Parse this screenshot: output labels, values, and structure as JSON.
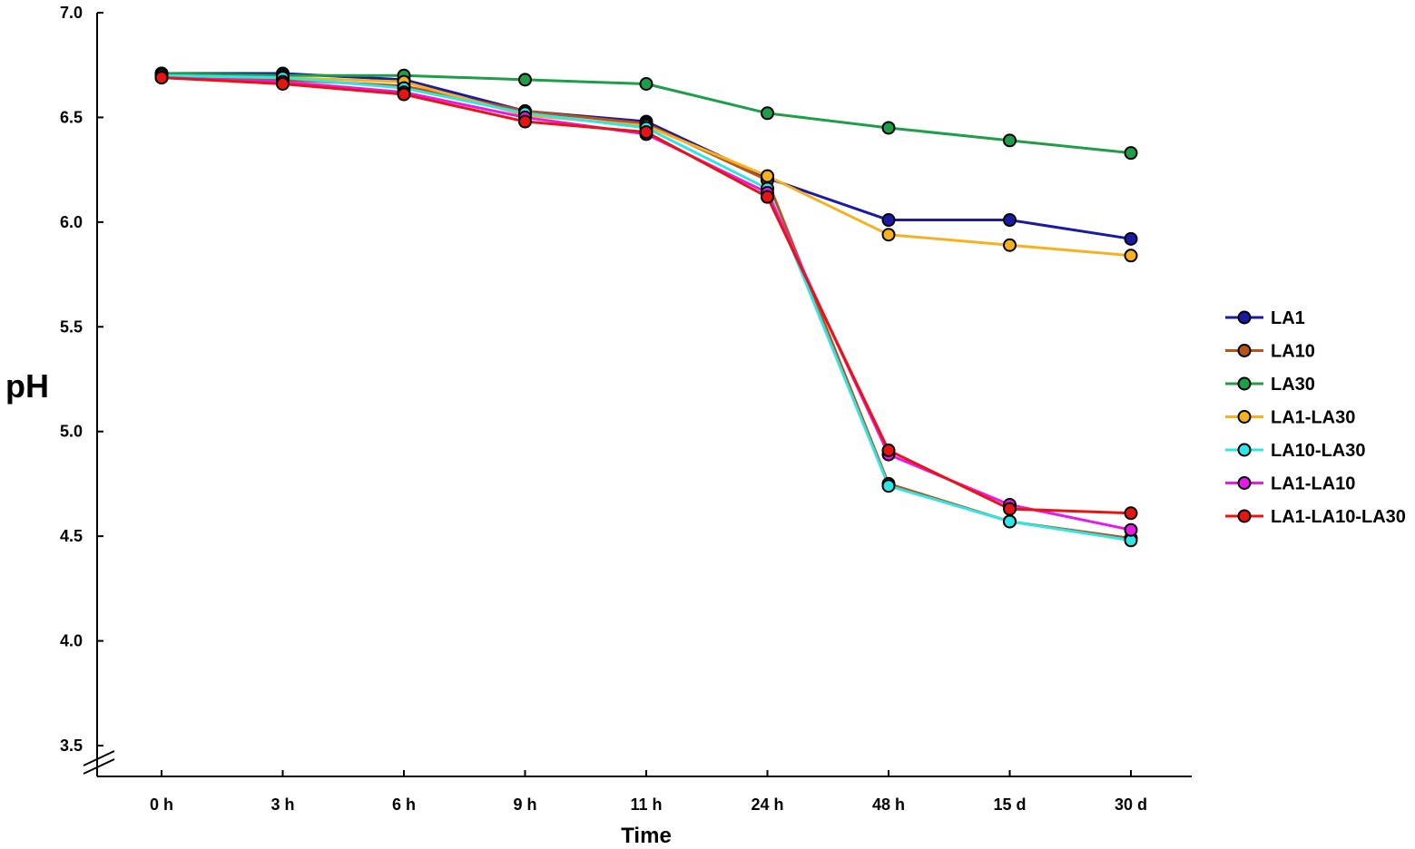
{
  "chart_data": {
    "type": "line",
    "title": "",
    "xlabel": "Time",
    "ylabel": "pH",
    "categories": [
      "0 h",
      "3 h",
      "6 h",
      "9 h",
      "11 h",
      "24 h",
      "48 h",
      "15 d",
      "30 d"
    ],
    "y_ticks": [
      "3.5",
      "4.0",
      "4.5",
      "5.0",
      "5.5",
      "6.0",
      "6.5",
      "7.0"
    ],
    "ylim": [
      3.5,
      7.0
    ],
    "y_axis_break": true,
    "grid": false,
    "legend_position": "right",
    "series": [
      {
        "name": "LA1",
        "color": "#1a1aa6",
        "values": [
          6.71,
          6.71,
          6.68,
          6.53,
          6.48,
          6.21,
          6.01,
          6.01,
          5.92
        ]
      },
      {
        "name": "LA10",
        "color": "#b8531c",
        "values": [
          6.7,
          6.68,
          6.65,
          6.53,
          6.47,
          6.2,
          4.75,
          4.57,
          4.49
        ]
      },
      {
        "name": "LA30",
        "color": "#1e9e48",
        "values": [
          6.71,
          6.7,
          6.7,
          6.68,
          6.66,
          6.52,
          6.45,
          6.39,
          6.33
        ]
      },
      {
        "name": "LA1-LA30",
        "color": "#f5b21e",
        "values": [
          6.7,
          6.69,
          6.67,
          6.51,
          6.46,
          6.22,
          5.94,
          5.89,
          5.84
        ]
      },
      {
        "name": "LA10-LA30",
        "color": "#2fe6e6",
        "values": [
          6.7,
          6.69,
          6.64,
          6.52,
          6.45,
          6.16,
          4.74,
          4.57,
          4.48
        ]
      },
      {
        "name": "LA1-LA10",
        "color": "#e81ae8",
        "values": [
          6.69,
          6.67,
          6.62,
          6.5,
          6.42,
          6.14,
          4.89,
          4.65,
          4.53
        ]
      },
      {
        "name": "LA1-LA10-LA30",
        "color": "#e81414",
        "values": [
          6.69,
          6.66,
          6.61,
          6.48,
          6.43,
          6.12,
          4.91,
          4.63,
          4.61
        ]
      }
    ]
  }
}
